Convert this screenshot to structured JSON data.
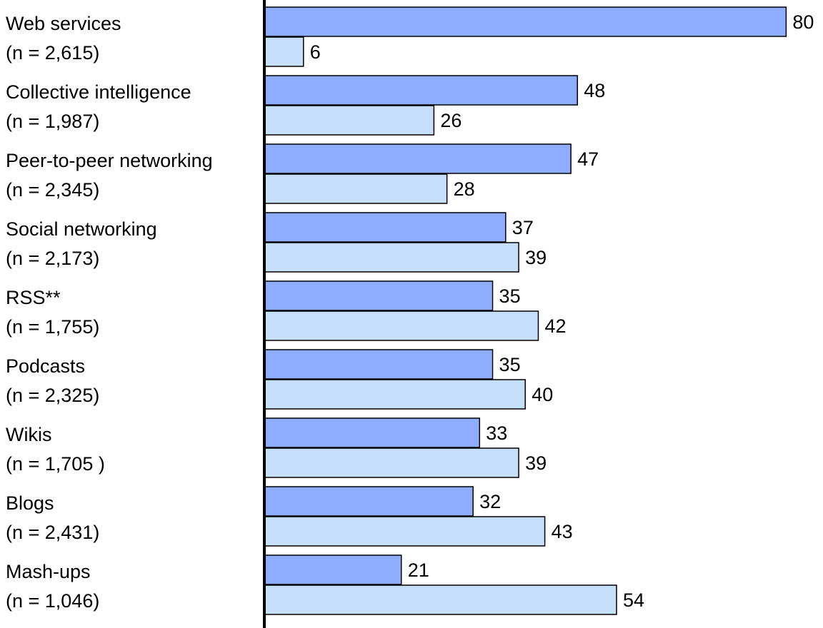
{
  "chart_data": {
    "type": "bar",
    "orientation": "horizontal",
    "categories": [
      {
        "name": "Web services",
        "n": "(n = 2,615)"
      },
      {
        "name": "Collective intelligence",
        "n": "(n = 1,987)"
      },
      {
        "name": "Peer-to-peer networking",
        "n": "(n = 2,345)"
      },
      {
        "name": "Social networking",
        "n": "(n = 2,173)"
      },
      {
        "name": "RSS**",
        "n": "(n = 1,755)"
      },
      {
        "name": "Podcasts",
        "n": "(n = 2,325)"
      },
      {
        "name": "Wikis",
        "n": "(n = 1,705 )"
      },
      {
        "name": "Blogs",
        "n": "(n = 2,431)"
      },
      {
        "name": "Mash-ups",
        "n": "(n = 1,046)"
      }
    ],
    "series": [
      {
        "color": "#8fadff",
        "values": [
          80,
          48,
          47,
          37,
          35,
          35,
          33,
          32,
          21
        ]
      },
      {
        "color": "#c5dffa",
        "values": [
          6,
          26,
          28,
          39,
          42,
          40,
          39,
          43,
          54
        ]
      }
    ],
    "xlim": [
      0,
      80
    ],
    "grid": false,
    "legend": "none"
  }
}
